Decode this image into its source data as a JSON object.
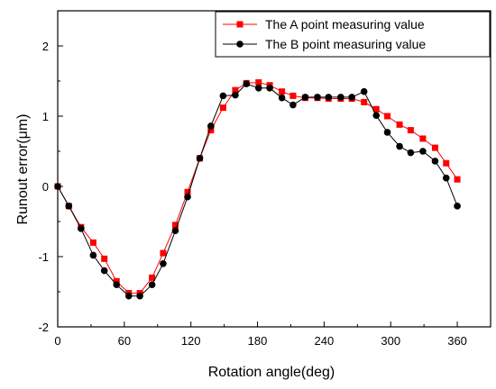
{
  "chart_data": {
    "type": "line",
    "xlabel": "Rotation angle(deg)",
    "ylabel": "Runout error(μm)",
    "xlim": [
      0,
      390
    ],
    "ylim": [
      -2,
      2.5
    ],
    "xticks": [
      0,
      60,
      120,
      180,
      240,
      300,
      360
    ],
    "yticks": [
      -2,
      -1,
      0,
      1,
      2
    ],
    "xtick_labels": [
      "0",
      "60",
      "120",
      "180",
      "240",
      "300",
      "360"
    ],
    "ytick_labels": [
      "-2",
      "-1",
      "0",
      "1",
      "2"
    ],
    "grid": false,
    "legend_position": "top-right",
    "series": [
      {
        "name": "The A point measuring value",
        "color": "#ff0000",
        "marker": "square",
        "x": [
          0,
          10,
          21,
          32,
          42,
          53,
          64,
          74,
          85,
          95,
          106,
          117,
          128,
          138,
          149,
          160,
          170,
          181,
          191,
          202,
          212,
          223,
          234,
          244,
          255,
          265,
          276,
          287,
          297,
          308,
          318,
          329,
          340,
          350,
          360
        ],
        "y": [
          0.0,
          -0.28,
          -0.58,
          -0.8,
          -1.03,
          -1.35,
          -1.52,
          -1.52,
          -1.3,
          -0.95,
          -0.55,
          -0.08,
          0.4,
          0.8,
          1.12,
          1.37,
          1.47,
          1.48,
          1.44,
          1.35,
          1.29,
          1.26,
          1.26,
          1.25,
          1.25,
          1.25,
          1.2,
          1.1,
          1.0,
          0.88,
          0.8,
          0.68,
          0.55,
          0.33,
          0.1
        ]
      },
      {
        "name": "The B point measuring value",
        "color": "#000000",
        "marker": "circle",
        "x": [
          0,
          10,
          21,
          32,
          42,
          53,
          64,
          74,
          85,
          95,
          106,
          117,
          128,
          138,
          149,
          160,
          170,
          181,
          191,
          202,
          212,
          223,
          234,
          244,
          255,
          265,
          276,
          287,
          297,
          308,
          318,
          329,
          340,
          350,
          360
        ],
        "y": [
          0.0,
          -0.28,
          -0.6,
          -0.98,
          -1.2,
          -1.4,
          -1.56,
          -1.56,
          -1.4,
          -1.1,
          -0.63,
          -0.15,
          0.4,
          0.86,
          1.29,
          1.3,
          1.46,
          1.4,
          1.4,
          1.26,
          1.16,
          1.27,
          1.27,
          1.27,
          1.27,
          1.27,
          1.35,
          1.01,
          0.77,
          0.57,
          0.48,
          0.5,
          0.36,
          0.12,
          -0.28
        ]
      }
    ]
  }
}
